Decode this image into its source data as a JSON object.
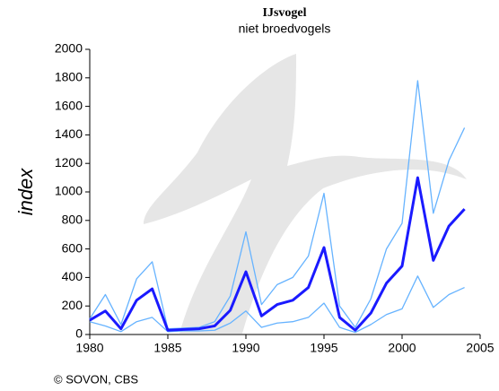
{
  "chart_data": {
    "type": "line",
    "title": "IJsvogel",
    "subtitle": "niet broedvogels",
    "y_label": "index",
    "footer": "© SOVON, CBS",
    "x": [
      1980,
      1981,
      1982,
      1983,
      1984,
      1985,
      1986,
      1987,
      1988,
      1989,
      1990,
      1991,
      1992,
      1993,
      1994,
      1995,
      1996,
      1997,
      1998,
      1999,
      2000,
      2001,
      2002,
      2003,
      2004
    ],
    "series": [
      {
        "color": "#66b3ff",
        "width": 1.3,
        "values": [
          110,
          280,
          70,
          390,
          510,
          40,
          45,
          50,
          90,
          270,
          720,
          210,
          350,
          400,
          550,
          990,
          200,
          50,
          250,
          600,
          780,
          1780,
          850,
          1220,
          1450
        ]
      },
      {
        "color": "#66b3ff",
        "width": 1.3,
        "values": [
          90,
          60,
          20,
          90,
          120,
          20,
          25,
          25,
          30,
          80,
          165,
          50,
          80,
          90,
          120,
          220,
          50,
          15,
          70,
          140,
          180,
          410,
          190,
          280,
          330
        ]
      },
      {
        "color": "#1a1aff",
        "width": 3,
        "values": [
          100,
          165,
          40,
          240,
          320,
          30,
          35,
          40,
          60,
          170,
          440,
          130,
          210,
          240,
          330,
          610,
          120,
          30,
          150,
          360,
          480,
          1100,
          520,
          760,
          880
        ]
      }
    ],
    "xlim": [
      1980,
      2005
    ],
    "xticks": [
      1980,
      1985,
      1990,
      1995,
      2000,
      2005
    ],
    "ylim": [
      0,
      2000
    ],
    "yticks": [
      0,
      200,
      400,
      600,
      800,
      1000,
      1200,
      1400,
      1600,
      1800,
      2000
    ]
  }
}
